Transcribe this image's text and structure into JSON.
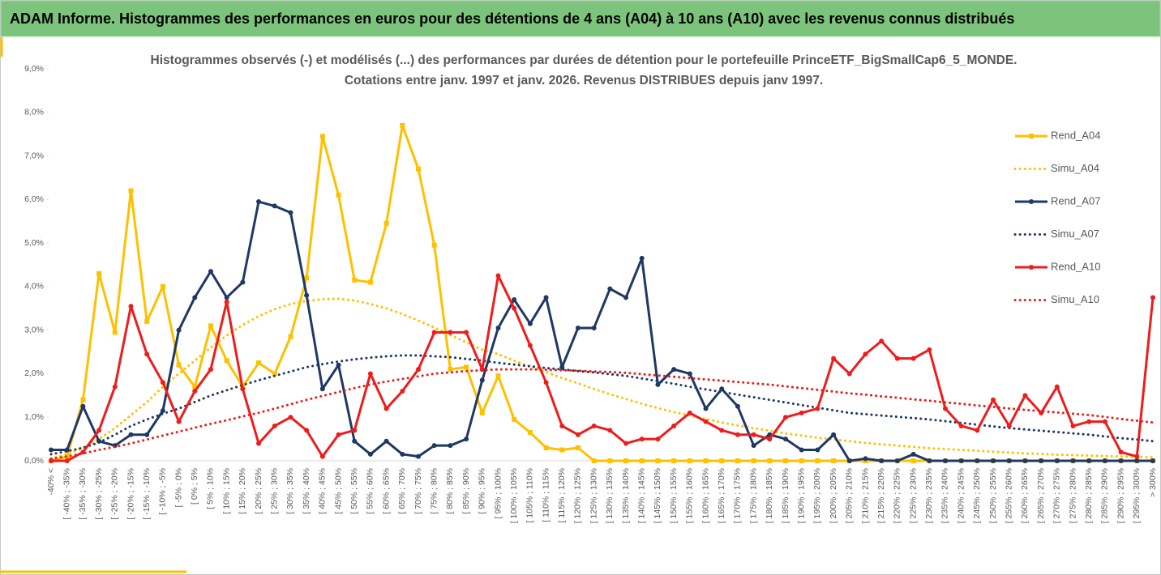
{
  "header": {
    "title": "ADAM Informe. Histogrammes des performances en euros pour des détentions de 4 ans (A04) à 10 ans (A10) avec les revenus connus distribués"
  },
  "chart_data": {
    "type": "line",
    "title": "Histogrammes observés (-) et modélisés (...) des performances par durées de détention pour le portefeuille PrinceETF_BigSmallCap6_5_MONDE.",
    "subtitle": "Cotations entre janv. 1997 et janv. 2026. Revenus DISTRIBUES depuis janv 1997.",
    "categories": [
      "-40% <",
      "[ -40% ; -35%",
      "[ -35% ; -30%",
      "[ -30% ; -25%",
      "[ -25% ; -20%",
      "[ -20% ; -15%",
      "[ -15% ; -10%",
      "[ -10% ; -5%",
      "[ -5% ; 0%",
      "[ 0% ; 5%",
      "[ 5% ; 10%",
      "[ 10% ; 15%",
      "[ 15% ; 20%",
      "[ 20% ; 25%",
      "[ 25% ; 30%",
      "[ 30% ; 35%",
      "[ 35% ; 40%",
      "[ 40% ; 45%",
      "[ 45% ; 50%",
      "[ 50% ; 55%",
      "[ 55% ; 60%",
      "[ 60% ; 65%",
      "[ 65% ; 70%",
      "[ 70% ; 75%",
      "[ 75% ; 80%",
      "[ 80% ; 85%",
      "[ 85% ; 90%",
      "[ 90% ; 95%",
      "[ 95% ; 100%",
      "[ 100% ; 105%",
      "[ 105% ; 110%",
      "[ 110% ; 115%",
      "[ 115% ; 120%",
      "[ 120% ; 125%",
      "[ 125% ; 130%",
      "[ 130% ; 135%",
      "[ 135% ; 140%",
      "[ 140% ; 145%",
      "[ 145% ; 150%",
      "[ 150% ; 155%",
      "[ 155% ; 160%",
      "[ 160% ; 165%",
      "[ 165% ; 170%",
      "[ 170% ; 175%",
      "[ 175% ; 180%",
      "[ 180% ; 185%",
      "[ 185% ; 190%",
      "[ 190% ; 195%",
      "[ 195% ; 200%",
      "[ 200% ; 205%",
      "[ 205% ; 210%",
      "[ 210% ; 215%",
      "[ 215% ; 220%",
      "[ 220% ; 225%",
      "[ 225% ; 230%",
      "[ 230% ; 235%",
      "[ 235% ; 240%",
      "[ 240% ; 245%",
      "[ 245% ; 250%",
      "[ 250% ; 255%",
      "[ 255% ; 260%",
      "[ 260% ; 265%",
      "[ 265% ; 270%",
      "[ 270% ; 275%",
      "[ 275% ; 280%",
      "[ 280% ; 285%",
      "[ 285% ; 290%",
      "[ 290% ; 295%",
      "[ 295% ; 300%",
      "> 300%"
    ],
    "series": [
      {
        "name": "Rend_A04",
        "color": "#ffc000",
        "dash": false,
        "marker": "square",
        "values": [
          0,
          0.1,
          1.4,
          4.3,
          2.95,
          6.2,
          3.2,
          4.0,
          2.2,
          1.7,
          3.1,
          2.3,
          1.7,
          2.25,
          2.0,
          2.85,
          4.2,
          7.45,
          6.1,
          4.15,
          4.1,
          5.45,
          7.7,
          6.7,
          4.95,
          2.1,
          2.15,
          1.1,
          1.95,
          0.95,
          0.65,
          0.3,
          0.25,
          0.3,
          0,
          0,
          0,
          0,
          0,
          0,
          0,
          0,
          0,
          0,
          0,
          0,
          0,
          0,
          0,
          0,
          0,
          0,
          0,
          0,
          0,
          0,
          0,
          0,
          0,
          0,
          0,
          0,
          0,
          0,
          0,
          0,
          0,
          0,
          0,
          0
        ]
      },
      {
        "name": "Simu_A04",
        "color": "#ffc000",
        "dash": true,
        "marker": "none",
        "values": [
          0.05,
          0.15,
          0.3,
          0.5,
          0.75,
          1.05,
          1.35,
          1.7,
          2.0,
          2.3,
          2.6,
          2.88,
          3.12,
          3.32,
          3.48,
          3.6,
          3.67,
          3.71,
          3.72,
          3.68,
          3.6,
          3.5,
          3.37,
          3.22,
          3.06,
          2.89,
          2.72,
          2.55,
          2.45,
          2.3,
          2.17,
          2.04,
          1.9,
          1.78,
          1.65,
          1.53,
          1.42,
          1.31,
          1.21,
          1.12,
          1.04,
          0.96,
          0.88,
          0.81,
          0.75,
          0.69,
          0.63,
          0.58,
          0.53,
          0.49,
          0.45,
          0.41,
          0.38,
          0.35,
          0.32,
          0.29,
          0.27,
          0.25,
          0.23,
          0.21,
          0.19,
          0.17,
          0.16,
          0.14,
          0.13,
          0.12,
          0.11,
          0.1,
          0.09,
          0.08
        ]
      },
      {
        "name": "Rend_A07",
        "color": "#1f3864",
        "dash": false,
        "marker": "circle",
        "values": [
          0.25,
          0.25,
          1.25,
          0.45,
          0.35,
          0.6,
          0.6,
          1.15,
          3.0,
          3.75,
          4.35,
          3.75,
          4.1,
          5.95,
          5.85,
          5.7,
          3.8,
          1.65,
          2.2,
          0.45,
          0.15,
          0.45,
          0.15,
          0.1,
          0.35,
          0.35,
          0.5,
          1.85,
          3.05,
          3.7,
          3.15,
          3.75,
          2.15,
          3.05,
          3.05,
          3.95,
          3.75,
          4.65,
          1.75,
          2.1,
          2.0,
          1.2,
          1.65,
          1.25,
          0.35,
          0.6,
          0.5,
          0.25,
          0.25,
          0.6,
          0,
          0.05,
          0,
          0,
          0.15,
          0,
          0,
          0,
          0,
          0,
          0,
          0,
          0,
          0,
          0,
          0,
          0,
          0,
          0,
          0
        ]
      },
      {
        "name": "Simu_A07",
        "color": "#1f3864",
        "dash": true,
        "marker": "none",
        "values": [
          0.15,
          0.22,
          0.3,
          0.42,
          0.6,
          0.8,
          0.95,
          1.08,
          1.2,
          1.35,
          1.5,
          1.62,
          1.74,
          1.85,
          1.95,
          2.05,
          2.15,
          2.22,
          2.28,
          2.33,
          2.37,
          2.4,
          2.42,
          2.42,
          2.4,
          2.38,
          2.34,
          2.3,
          2.25,
          2.21,
          2.17,
          2.13,
          2.1,
          2.06,
          2.03,
          1.99,
          1.95,
          1.89,
          1.83,
          1.77,
          1.7,
          1.64,
          1.58,
          1.52,
          1.46,
          1.4,
          1.34,
          1.28,
          1.22,
          1.16,
          1.1,
          1.07,
          1.04,
          1.01,
          0.98,
          0.95,
          0.91,
          0.87,
          0.83,
          0.79,
          0.75,
          0.72,
          0.69,
          0.66,
          0.63,
          0.6,
          0.56,
          0.52,
          0.49,
          0.45
        ]
      },
      {
        "name": "Rend_A10",
        "color": "#ee1c1c",
        "dash": false,
        "marker": "circle",
        "values": [
          0,
          0,
          0.2,
          0.7,
          1.7,
          3.55,
          2.45,
          1.8,
          0.9,
          1.6,
          2.1,
          3.65,
          1.65,
          0.4,
          0.8,
          1.0,
          0.7,
          0.1,
          0.6,
          0.7,
          2.0,
          1.2,
          1.6,
          2.1,
          2.95,
          2.95,
          2.95,
          2.1,
          4.25,
          3.5,
          2.65,
          1.8,
          0.8,
          0.6,
          0.8,
          0.7,
          0.4,
          0.5,
          0.5,
          0.8,
          1.1,
          0.9,
          0.7,
          0.6,
          0.6,
          0.5,
          1.0,
          1.1,
          1.2,
          2.35,
          2.0,
          2.45,
          2.75,
          2.35,
          2.35,
          2.55,
          1.2,
          0.8,
          0.7,
          1.4,
          0.8,
          1.5,
          1.1,
          1.7,
          0.8,
          0.9,
          0.9,
          0.2,
          0.1,
          3.75
        ]
      },
      {
        "name": "Simu_A10",
        "color": "#ee1c1c",
        "dash": true,
        "marker": "none",
        "values": [
          0.05,
          0.1,
          0.17,
          0.25,
          0.32,
          0.4,
          0.49,
          0.58,
          0.67,
          0.76,
          0.85,
          0.93,
          1.02,
          1.1,
          1.2,
          1.3,
          1.4,
          1.49,
          1.58,
          1.67,
          1.75,
          1.82,
          1.88,
          1.94,
          2.0,
          2.03,
          2.06,
          2.08,
          2.1,
          2.1,
          2.1,
          2.09,
          2.08,
          2.07,
          2.05,
          2.04,
          2.02,
          1.99,
          1.96,
          1.93,
          1.9,
          1.87,
          1.84,
          1.81,
          1.78,
          1.75,
          1.71,
          1.67,
          1.63,
          1.59,
          1.55,
          1.52,
          1.48,
          1.45,
          1.41,
          1.38,
          1.34,
          1.31,
          1.27,
          1.24,
          1.2,
          1.17,
          1.14,
          1.11,
          1.08,
          1.05,
          1.01,
          0.96,
          0.92,
          0.88
        ]
      }
    ],
    "ylim": [
      0,
      9
    ],
    "yticks": [
      {
        "value": 0,
        "label": "0,0%"
      },
      {
        "value": 1,
        "label": "1,0%"
      },
      {
        "value": 2,
        "label": "2,0%"
      },
      {
        "value": 3,
        "label": "3,0%"
      },
      {
        "value": 4,
        "label": "4,0%"
      },
      {
        "value": 5,
        "label": "5,0%"
      },
      {
        "value": 6,
        "label": "6,0%"
      },
      {
        "value": 7,
        "label": "7,0%"
      },
      {
        "value": 8,
        "label": "8,0%"
      },
      {
        "value": 9,
        "label": "9,0%"
      }
    ],
    "grid": false,
    "legend": "right"
  }
}
